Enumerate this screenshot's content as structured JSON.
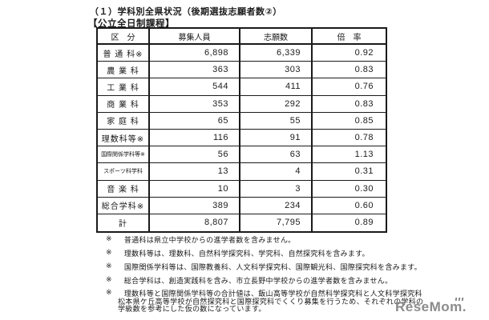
{
  "page": {
    "title": "（１）学科別全県状況（後期選抜志願者数②）",
    "subtitle": "【公立全日制課程】"
  },
  "table": {
    "headers": {
      "category": "区　分",
      "recruit": "募集人員",
      "applicants": "志願数",
      "ratio": "倍　率"
    },
    "rows": [
      {
        "label": "普 通 科※",
        "recruit": "6,898",
        "applicants": "6,339",
        "ratio": "0.92"
      },
      {
        "label": "農 業 科",
        "recruit": "363",
        "applicants": "303",
        "ratio": "0.83"
      },
      {
        "label": "工 業 科",
        "recruit": "544",
        "applicants": "411",
        "ratio": "0.76"
      },
      {
        "label": "商 業 科",
        "recruit": "353",
        "applicants": "292",
        "ratio": "0.83"
      },
      {
        "label": "家 庭 科",
        "recruit": "65",
        "applicants": "55",
        "ratio": "0.85"
      },
      {
        "label": "理数科等※",
        "recruit": "116",
        "applicants": "91",
        "ratio": "0.78"
      },
      {
        "label": "国際関係学科等※",
        "recruit": "56",
        "applicants": "63",
        "ratio": "1.13"
      },
      {
        "label": "スポーツ科学科",
        "recruit": "13",
        "applicants": "4",
        "ratio": "0.31"
      },
      {
        "label": "音 楽 科",
        "recruit": "10",
        "applicants": "3",
        "ratio": "0.30"
      },
      {
        "label": "総合学科※",
        "recruit": "389",
        "applicants": "234",
        "ratio": "0.60"
      },
      {
        "label": "計",
        "recruit": "8,807",
        "applicants": "7,795",
        "ratio": "0.89"
      }
    ]
  },
  "notes": {
    "mark": "※",
    "n1": "普通科は県立中学校からの進学者数を含みません。",
    "n2": "理数科等は、理数科、自然科学探究科、学究科、自然探究科を含みます。",
    "n3": "国際関係学科等は、国際教養科、人文科学探究科、国際観光科、国際探究科を含みます。",
    "n4": "総合学科は、創造実践科を含み、市立長野中学校からの進学者数を含みません。",
    "n5_line1": "理数科等と国際関係学科等の合計値は、飯山高等学校が自然科学探究科と人文科学探究科",
    "n5_line2": "松本県ケ丘高等学校が自然探究科と国際探究科でくくり募集を行うため、それぞれの学科の",
    "n5_line3": "学級数を参考にした仮の数になっています。"
  },
  "logo": {
    "text": "ReseMom."
  },
  "colors": {
    "background": "#ffffff",
    "text": "#1b1b1b",
    "border": "#1a1a1a",
    "logo": "#8b8b8b"
  }
}
